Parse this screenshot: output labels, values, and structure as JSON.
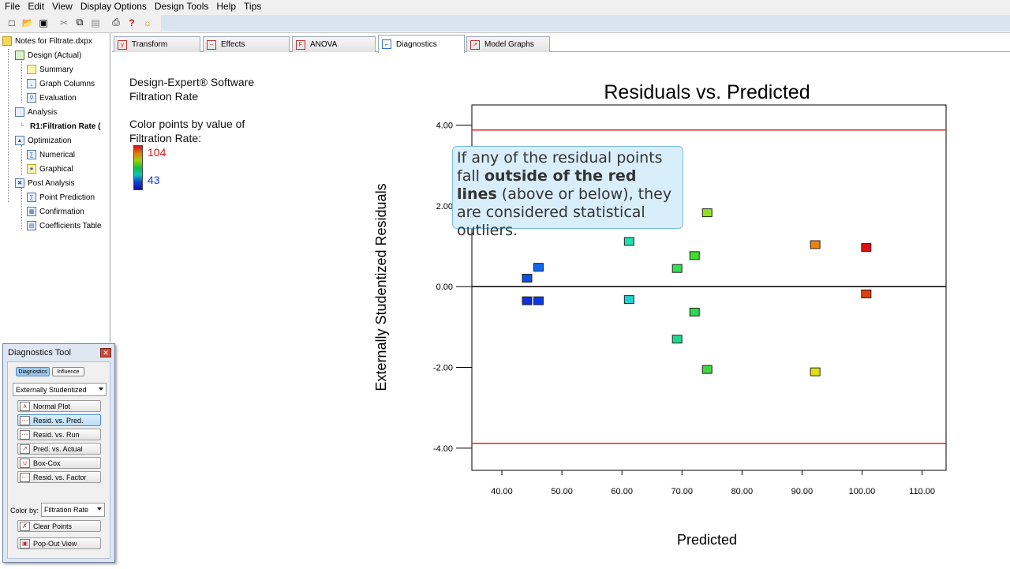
{
  "menu": [
    "File",
    "Edit",
    "View",
    "Display Options",
    "Design Tools",
    "Help",
    "Tips"
  ],
  "toolbar_icons": [
    "new-file-icon",
    "open-folder-icon",
    "save-icon",
    "cut-icon",
    "copy-icon",
    "paste-icon",
    "print-icon",
    "help-question-icon",
    "tip-bulb-icon"
  ],
  "tree": {
    "root": "Notes for Filtrate.dxpx",
    "design": "Design (Actual)",
    "summary": "Summary",
    "graph_columns": "Graph Columns",
    "evaluation": "Evaluation",
    "analysis": "Analysis",
    "r1": "R1:Filtration Rate (",
    "optimization": "Optimization",
    "numerical": "Numerical",
    "graphical": "Graphical",
    "post_analysis": "Post Analysis",
    "point_prediction": "Point Prediction",
    "confirmation": "Confirmation",
    "coefficients_table": "Coefficients Table"
  },
  "tabs": [
    "Transform",
    "Effects",
    "ANOVA",
    "Diagnostics",
    "Model Graphs"
  ],
  "active_tab": "Diagnostics",
  "side": {
    "line1": "Design-Expert® Software",
    "line2": "Filtration Rate",
    "color_line1": "Color points by value of",
    "color_line2": "Filtration Rate:",
    "max_value": "104",
    "min_value": "43"
  },
  "callout": {
    "part1": "If any of the residual points fall ",
    "bold": "outside of the red lines",
    "part2": " (above or below), they are considered statistical outliers."
  },
  "diagnostics_tool": {
    "title": "Diagnostics Tool",
    "tab_diagnostics": "Diagnostics",
    "tab_influence": "Influence",
    "residual_type": "Externally Studentized",
    "buttons": [
      "Normal Plot",
      "Resid. vs. Pred.",
      "Resid. vs. Run",
      "Pred. vs. Actual",
      "Box-Cox",
      "Resid. vs. Factor"
    ],
    "selected_button": "Resid. vs. Pred.",
    "color_by_label": "Color by:",
    "color_by_value": "Filtration Rate",
    "clear_points": "Clear Points",
    "pop_out": "Pop-Out View"
  },
  "chart_data": {
    "type": "scatter",
    "title": "Residuals vs. Predicted",
    "xlabel": "Predicted",
    "ylabel": "Externally Studentized Residuals",
    "xlim": [
      35,
      114
    ],
    "ylim": [
      -4.55,
      4.5
    ],
    "x_ticks": [
      "40.00",
      "50.00",
      "60.00",
      "70.00",
      "80.00",
      "90.00",
      "100.00",
      "110.00"
    ],
    "y_ticks": [
      "-4.00",
      "-2.00",
      "0.00",
      "2.00",
      "4.00"
    ],
    "reference_lines": [
      {
        "y": 3.88,
        "color": "#e02020"
      },
      {
        "y": -3.88,
        "color": "#e02020"
      },
      {
        "y": 0,
        "color": "#000000"
      }
    ],
    "points": [
      {
        "x": 44.2,
        "y": 0.21,
        "color": "#1050e0"
      },
      {
        "x": 44.2,
        "y": -0.35,
        "color": "#1030d8"
      },
      {
        "x": 46.1,
        "y": 0.48,
        "color": "#1068f0"
      },
      {
        "x": 46.1,
        "y": -0.35,
        "color": "#1038e0"
      },
      {
        "x": 61.2,
        "y": 1.12,
        "color": "#20e0b0"
      },
      {
        "x": 61.2,
        "y": -0.32,
        "color": "#20d0d0"
      },
      {
        "x": 69.2,
        "y": 0.45,
        "color": "#30e050"
      },
      {
        "x": 69.2,
        "y": -1.3,
        "color": "#20d890"
      },
      {
        "x": 72.1,
        "y": 0.77,
        "color": "#40e030"
      },
      {
        "x": 72.1,
        "y": -0.63,
        "color": "#30d850"
      },
      {
        "x": 74.2,
        "y": 1.83,
        "color": "#90e020"
      },
      {
        "x": 74.2,
        "y": -2.05,
        "color": "#40d840"
      },
      {
        "x": 92.2,
        "y": 1.04,
        "color": "#f08010"
      },
      {
        "x": 92.2,
        "y": -2.11,
        "color": "#e0e010"
      },
      {
        "x": 100.7,
        "y": 0.97,
        "color": "#e01010"
      },
      {
        "x": 100.7,
        "y": -0.18,
        "color": "#e04010"
      }
    ]
  }
}
